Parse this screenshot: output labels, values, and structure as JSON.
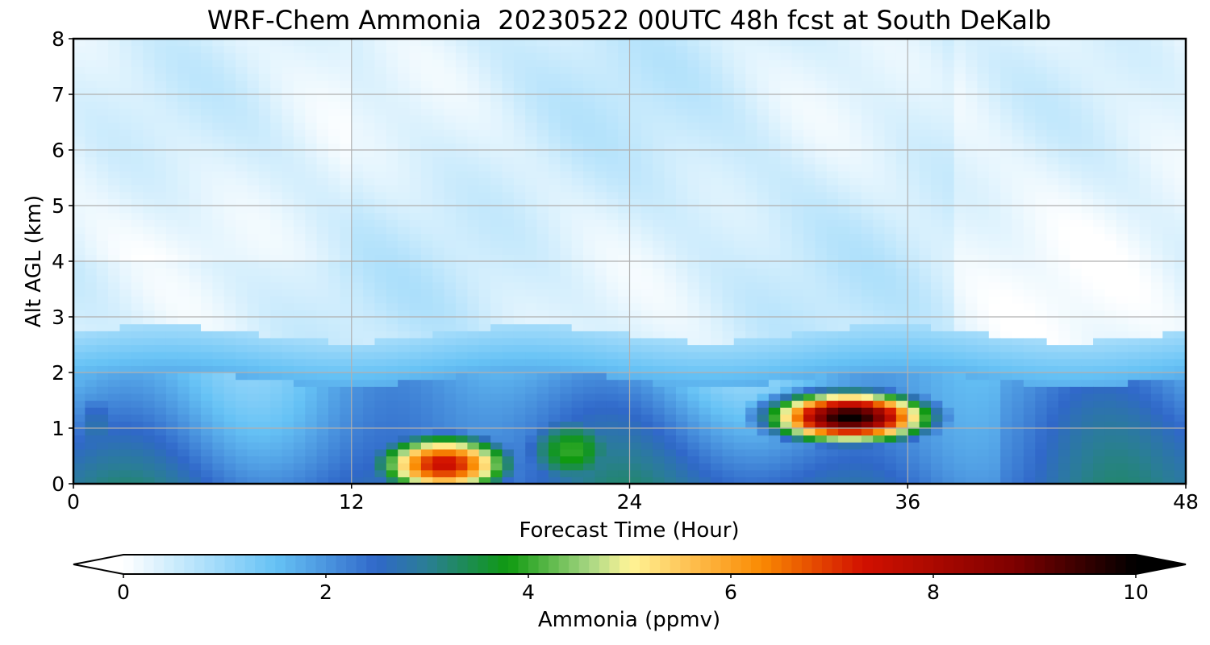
{
  "chart_data": {
    "type": "heatmap",
    "title": "WRF-Chem Ammonia  20230522 00UTC 48h fcst at South DeKalb",
    "xlabel": "Forecast Time (Hour)",
    "ylabel": "Alt AGL (km)",
    "xlim": [
      0,
      48
    ],
    "ylim": [
      0,
      8
    ],
    "x_ticks": [
      "0",
      "12",
      "24",
      "36",
      "48"
    ],
    "y_ticks": [
      "0",
      "1",
      "2",
      "3",
      "4",
      "5",
      "6",
      "7",
      "8"
    ],
    "grid": true,
    "colorbar": {
      "label": "Ammonia  (ppmv)",
      "range": [
        0,
        10
      ],
      "ticks": [
        "0",
        "2",
        "4",
        "6",
        "8",
        "10"
      ],
      "extend": "both",
      "stops": [
        {
          "v": 0.0,
          "c": "#ffffff"
        },
        {
          "v": 0.8,
          "c": "#aee0fb"
        },
        {
          "v": 1.5,
          "c": "#66c2f5"
        },
        {
          "v": 2.5,
          "c": "#3068c9"
        },
        {
          "v": 3.0,
          "c": "#2a7e95"
        },
        {
          "v": 3.8,
          "c": "#0f9a10"
        },
        {
          "v": 4.6,
          "c": "#a6d682"
        },
        {
          "v": 5.0,
          "c": "#fff598"
        },
        {
          "v": 5.6,
          "c": "#fec050"
        },
        {
          "v": 6.3,
          "c": "#fa8a02"
        },
        {
          "v": 7.3,
          "c": "#d21100"
        },
        {
          "v": 8.8,
          "c": "#7e0000"
        },
        {
          "v": 10.0,
          "c": "#000000"
        }
      ]
    },
    "features": [
      {
        "name": "background_aloft",
        "value": 0.35
      },
      {
        "name": "boundary_layer",
        "x_range": [
          0,
          48
        ],
        "alt_top_km": 1.9,
        "value": 2.5
      },
      {
        "name": "plume_1",
        "x_center": 16,
        "alt_center_km": 0.35,
        "peak_value": 7.5
      },
      {
        "name": "green_tail",
        "x_center": 21.5,
        "alt_center_km": 0.6,
        "peak_value": 4.0
      },
      {
        "name": "plume_2",
        "x_center": 33.5,
        "alt_center_km": 1.2,
        "peak_value": 10.0
      }
    ]
  }
}
